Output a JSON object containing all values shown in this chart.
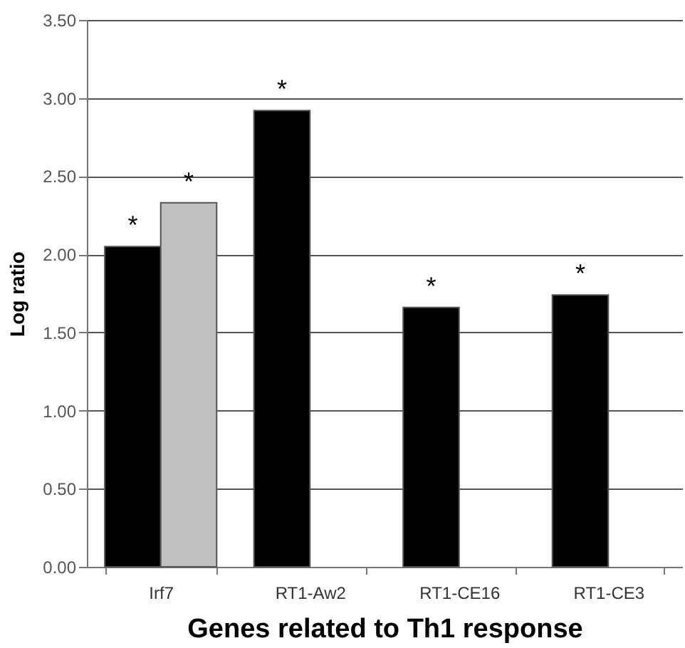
{
  "chart_data": {
    "type": "bar",
    "xlabel": "Genes related to Th1 response",
    "ylabel": "Log ratio",
    "categories": [
      "Irf7",
      "RT1-Aw2",
      "RT1-CE16",
      "RT1-CE3"
    ],
    "series": [
      {
        "color": "#000000",
        "values": [
          2.05,
          2.92,
          1.66,
          1.74
        ]
      },
      {
        "color": "#c0c0c0",
        "values": [
          2.33,
          null,
          null,
          null
        ]
      }
    ],
    "ylim": [
      0,
      3.5
    ],
    "yticks": [
      {
        "value": 0,
        "label": "0.00"
      },
      {
        "value": 0.5,
        "label": "0.50"
      },
      {
        "value": 1,
        "label": "1.00"
      },
      {
        "value": 1.5,
        "label": "1.50"
      },
      {
        "value": 2,
        "label": "2.00"
      },
      {
        "value": 2.5,
        "label": "2.50"
      },
      {
        "value": 3,
        "label": "3.00"
      },
      {
        "value": 3.5,
        "label": "3.50"
      }
    ],
    "grid": "y",
    "legend": false,
    "annotations": [
      {
        "text": "*",
        "x": "Irf7",
        "y": 2.05
      },
      {
        "text": "*",
        "x": "Irf7",
        "y": 2.33
      },
      {
        "text": "*",
        "x": "RT1-Aw2",
        "y": 2.92
      },
      {
        "text": "*",
        "x": "RT1-CE16",
        "y": 1.66
      },
      {
        "text": "*",
        "x": "RT1-CE3",
        "y": 1.74
      }
    ]
  }
}
